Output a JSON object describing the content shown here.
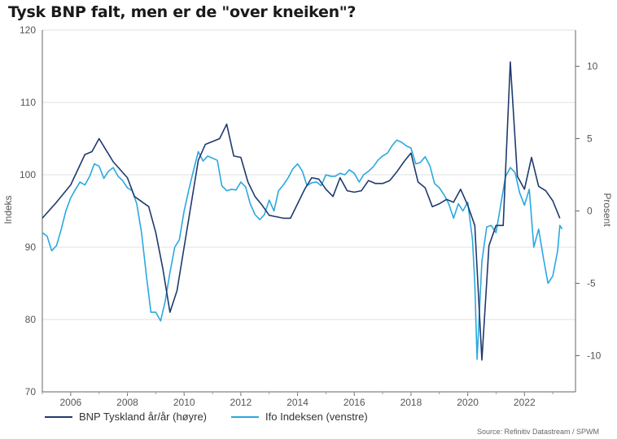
{
  "chart_data": {
    "type": "line",
    "title": "Tysk BNP falt, men er de \"over kneiken\"?",
    "ylabel_left": "Indeks",
    "ylabel_right": "Prosent",
    "xlim": [
      2005.0,
      2023.8
    ],
    "ylim_left": [
      70,
      120
    ],
    "ylim_right": [
      -12.5,
      12.5
    ],
    "yticks_left": [
      70,
      80,
      90,
      100,
      110,
      120
    ],
    "yticks_right": [
      -10,
      -5,
      0,
      5,
      10
    ],
    "xticks": [
      2006,
      2008,
      2010,
      2012,
      2014,
      2016,
      2018,
      2020,
      2022
    ],
    "grid": true,
    "legend_position": "bottom-left",
    "series": [
      {
        "name": "BNP Tyskland år/år (høyre)",
        "axis": "right",
        "color": "#1f3a6e",
        "x": [
          2005.0,
          2005.5,
          2006.0,
          2006.5,
          2006.75,
          2007.0,
          2007.5,
          2008.0,
          2008.25,
          2008.75,
          2009.0,
          2009.25,
          2009.5,
          2009.75,
          2010.0,
          2010.5,
          2010.75,
          2011.0,
          2011.25,
          2011.5,
          2011.75,
          2012.0,
          2012.25,
          2012.5,
          2012.75,
          2013.0,
          2013.25,
          2013.5,
          2013.75,
          2014.0,
          2014.25,
          2014.5,
          2014.75,
          2015.0,
          2015.25,
          2015.5,
          2015.75,
          2016.0,
          2016.25,
          2016.5,
          2016.75,
          2017.0,
          2017.25,
          2017.5,
          2017.75,
          2018.0,
          2018.25,
          2018.5,
          2018.75,
          2019.0,
          2019.25,
          2019.5,
          2019.75,
          2020.0,
          2020.25,
          2020.5,
          2020.75,
          2021.0,
          2021.25,
          2021.5,
          2021.75,
          2022.0,
          2022.25,
          2022.5,
          2022.75,
          2023.0,
          2023.25
        ],
        "y": [
          -0.5,
          0.6,
          1.8,
          3.9,
          4.1,
          5.0,
          3.4,
          2.3,
          1.0,
          0.3,
          -1.5,
          -4.0,
          -7.0,
          -5.5,
          -2.5,
          3.5,
          4.6,
          4.8,
          5.0,
          6.0,
          3.8,
          3.7,
          2.0,
          1.0,
          0.4,
          -0.3,
          -0.4,
          -0.5,
          -0.5,
          0.5,
          1.5,
          2.3,
          2.2,
          1.5,
          1.0,
          2.3,
          1.4,
          1.3,
          1.4,
          2.1,
          1.9,
          1.9,
          2.1,
          2.7,
          3.4,
          4.0,
          2.0,
          1.6,
          0.3,
          0.5,
          0.8,
          0.6,
          1.5,
          0.4,
          -1.0,
          -10.3,
          -2.4,
          -1.0,
          -1.0,
          10.3,
          2.4,
          1.5,
          3.7,
          1.7,
          1.4,
          0.7,
          -0.5
        ]
      },
      {
        "name": "Ifo Indeksen (venstre)",
        "axis": "left",
        "color": "#2ba8e0",
        "x": [
          2005.0,
          2005.17,
          2005.33,
          2005.5,
          2005.67,
          2005.83,
          2006.0,
          2006.17,
          2006.33,
          2006.5,
          2006.67,
          2006.83,
          2007.0,
          2007.17,
          2007.33,
          2007.5,
          2007.67,
          2007.83,
          2008.0,
          2008.17,
          2008.33,
          2008.5,
          2008.67,
          2008.83,
          2009.0,
          2009.17,
          2009.33,
          2009.5,
          2009.67,
          2009.83,
          2010.0,
          2010.17,
          2010.33,
          2010.5,
          2010.67,
          2010.83,
          2011.0,
          2011.17,
          2011.33,
          2011.5,
          2011.67,
          2011.83,
          2012.0,
          2012.17,
          2012.33,
          2012.5,
          2012.67,
          2012.83,
          2013.0,
          2013.17,
          2013.33,
          2013.5,
          2013.67,
          2013.83,
          2014.0,
          2014.17,
          2014.33,
          2014.5,
          2014.67,
          2014.83,
          2015.0,
          2015.17,
          2015.33,
          2015.5,
          2015.67,
          2015.83,
          2016.0,
          2016.17,
          2016.33,
          2016.5,
          2016.67,
          2016.83,
          2017.0,
          2017.17,
          2017.33,
          2017.5,
          2017.67,
          2017.83,
          2018.0,
          2018.17,
          2018.33,
          2018.5,
          2018.67,
          2018.83,
          2019.0,
          2019.17,
          2019.33,
          2019.5,
          2019.67,
          2019.83,
          2020.0,
          2020.17,
          2020.25,
          2020.33,
          2020.5,
          2020.67,
          2020.83,
          2021.0,
          2021.17,
          2021.33,
          2021.5,
          2021.67,
          2021.83,
          2022.0,
          2022.17,
          2022.33,
          2022.5,
          2022.67,
          2022.83,
          2023.0,
          2023.17,
          2023.25,
          2023.33
        ],
        "y": [
          92.0,
          91.5,
          89.5,
          90.2,
          92.5,
          95.0,
          96.8,
          98.0,
          99.0,
          98.6,
          99.8,
          101.5,
          101.2,
          99.5,
          100.5,
          101.0,
          99.8,
          99.2,
          98.2,
          97.8,
          96.0,
          92.0,
          86.0,
          81.0,
          81.0,
          79.8,
          82.5,
          86.5,
          90.0,
          91.0,
          95.0,
          98.0,
          100.6,
          103.2,
          101.9,
          102.6,
          102.3,
          102.0,
          98.5,
          97.8,
          98.0,
          97.9,
          99.0,
          98.3,
          96.0,
          94.5,
          93.8,
          94.5,
          96.5,
          95.0,
          97.8,
          98.6,
          99.6,
          100.8,
          101.5,
          100.5,
          98.5,
          98.9,
          99.0,
          98.5,
          100.0,
          99.8,
          99.8,
          100.2,
          100.0,
          100.7,
          100.2,
          99.0,
          100.0,
          100.5,
          101.1,
          102.0,
          102.6,
          103.0,
          104.0,
          104.8,
          104.5,
          104.0,
          103.7,
          101.5,
          101.7,
          102.5,
          101.2,
          98.8,
          98.2,
          97.2,
          96.0,
          94.0,
          96.0,
          95.0,
          96.2,
          91.0,
          85.0,
          74.5,
          88.0,
          92.8,
          93.0,
          92.0,
          96.0,
          99.7,
          101.0,
          100.3,
          97.5,
          95.8,
          98.0,
          90.0,
          92.5,
          88.5,
          85.0,
          86.0,
          89.5,
          93.0,
          92.5
        ]
      }
    ]
  },
  "source": "Source: Refinitiv Datastream / SPWM"
}
